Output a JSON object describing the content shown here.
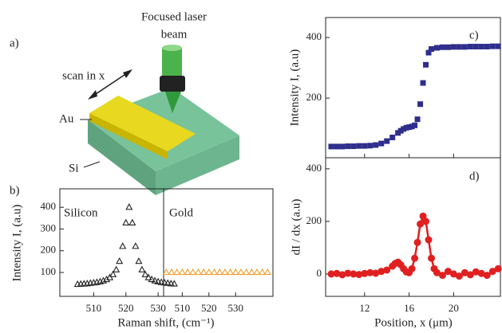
{
  "diagram": {
    "panel": "a)",
    "laser_label": [
      "Focused laser",
      "beam"
    ],
    "scan_label": "scan in x",
    "au_label": "Au",
    "si_label": "Si"
  },
  "chart_data": [
    {
      "type": "scatter",
      "panel": "b)",
      "title": "Silicon",
      "xlabel": "Raman shift, (cm⁻¹)",
      "ylabel": "Intensity I, (a.u)",
      "marker": "triangle-open",
      "color": "#222222",
      "x": [
        505,
        506,
        507,
        508,
        509,
        510,
        511,
        512,
        513,
        514,
        515,
        516,
        517,
        518,
        519,
        520,
        521,
        522,
        523,
        524,
        525,
        526,
        527,
        528,
        529,
        530,
        531,
        532,
        533,
        534,
        535
      ],
      "values": [
        45,
        46,
        47,
        48,
        50,
        52,
        54,
        57,
        61,
        67,
        76,
        90,
        112,
        151,
        220,
        328,
        400,
        328,
        220,
        151,
        112,
        90,
        76,
        67,
        61,
        57,
        54,
        52,
        50,
        48,
        47
      ],
      "xlim": [
        499.5,
        531.7
      ],
      "ylim": [
        -10,
        485
      ],
      "xticks": [
        510,
        520,
        530
      ],
      "yticks": [
        100,
        200,
        300,
        400
      ]
    },
    {
      "type": "scatter",
      "title": "Gold",
      "marker": "triangle-open",
      "color": "#f0a030",
      "x": [
        504,
        506,
        508,
        510,
        512,
        514,
        516,
        518,
        520,
        522,
        524,
        526,
        528,
        530,
        532,
        534,
        536,
        538,
        540,
        542
      ],
      "values": [
        100,
        100,
        100,
        100,
        100,
        100,
        100,
        100,
        100,
        100,
        100,
        100,
        100,
        100,
        100,
        100,
        100,
        100,
        100,
        100
      ],
      "xlim": [
        503,
        544
      ],
      "ylim": [
        -10,
        485
      ],
      "xticks": [
        510,
        520,
        530
      ]
    },
    {
      "type": "scatter",
      "panel": "c)",
      "ylabel": "Intensity I, (a.u)",
      "marker": "square",
      "color": "#2e2e8c",
      "xtick_labels": false,
      "x": [
        9,
        9.5,
        10,
        10.5,
        11,
        11.5,
        12,
        12.5,
        13,
        13.5,
        14,
        14.5,
        15,
        15.25,
        15.5,
        15.75,
        16,
        16.25,
        16.5,
        16.75,
        17,
        17.25,
        17.5,
        17.75,
        18,
        18.5,
        19,
        19.5,
        20,
        20.5,
        21,
        21.5,
        22,
        22.5,
        23,
        23.5,
        24
      ],
      "values": [
        40,
        40,
        40,
        41,
        41,
        42,
        42,
        43,
        45,
        50,
        58,
        70,
        85,
        92,
        98,
        102,
        104,
        106,
        110,
        130,
        180,
        250,
        310,
        350,
        362,
        366,
        368,
        368,
        369,
        369,
        369,
        370,
        370,
        370,
        370,
        371,
        371
      ],
      "xlim": [
        8.5,
        24.2
      ],
      "ylim": [
        3,
        466
      ],
      "xticks": [
        12,
        16,
        20
      ],
      "yticks": [
        200,
        400
      ]
    },
    {
      "type": "scatter",
      "panel": "d)",
      "xlabel": "Position, x (μm)",
      "ylabel": "dI / dx  (a.u)",
      "marker": "circle",
      "line": true,
      "color": "#e02020",
      "x": [
        9,
        9.5,
        10,
        10.5,
        11,
        11.5,
        12,
        12.5,
        13,
        13.5,
        14,
        14.5,
        14.75,
        15,
        15.25,
        15.5,
        15.75,
        16,
        16.25,
        16.5,
        16.75,
        17,
        17.25,
        17.5,
        17.75,
        18,
        18.25,
        18.5,
        19,
        19.5,
        20,
        20.5,
        21,
        21.5,
        22,
        22.5,
        23,
        23.5,
        24
      ],
      "values": [
        0,
        2,
        -3,
        3,
        0,
        -2,
        2,
        5,
        3,
        10,
        15,
        30,
        40,
        45,
        35,
        20,
        8,
        5,
        20,
        60,
        120,
        190,
        220,
        200,
        130,
        60,
        20,
        5,
        -5,
        10,
        0,
        -8,
        5,
        -3,
        8,
        2,
        -5,
        10,
        20
      ],
      "xlim": [
        8.5,
        24.2
      ],
      "ylim": [
        -85,
        442
      ],
      "xticks": [
        12,
        16,
        20
      ],
      "yticks": [
        0,
        200,
        400
      ]
    }
  ]
}
